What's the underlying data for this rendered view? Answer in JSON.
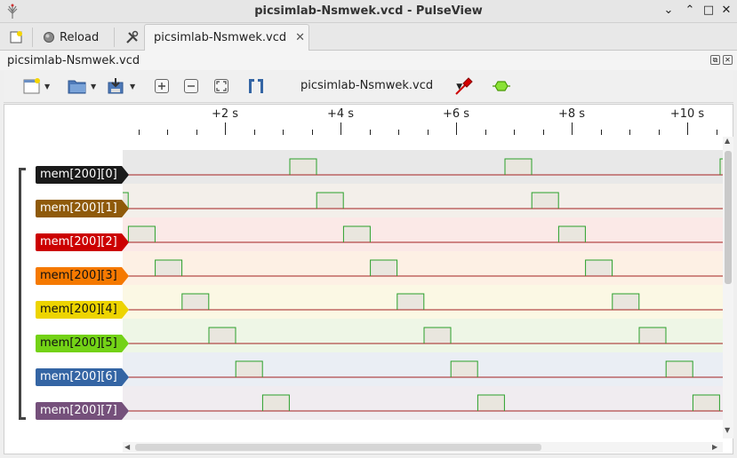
{
  "window": {
    "title": "picsimlab-Nsmwek.vcd - PulseView",
    "controls": [
      "⌄",
      "⌃",
      "□",
      "✕"
    ]
  },
  "tabbar": {
    "reload_label": "Reload",
    "document_tab": "picsimlab-Nsmwek.vcd",
    "close_glyph": "✕"
  },
  "panel": {
    "title": "picsimlab-Nsmwek.vcd",
    "float_glyph": "⧉",
    "close_glyph": "✕"
  },
  "toolbar": {
    "session_select": "picsimlab-Nsmwek.vcd",
    "icons": [
      "new-view-icon",
      "open-icon",
      "save-icon",
      "zoom-in-icon",
      "zoom-out-icon",
      "zoom-fit-icon",
      "cursor-icon",
      "probe-icon",
      "decoder-icon"
    ]
  },
  "ruler": {
    "labels": [
      "+2 s",
      "+4 s",
      "+6 s",
      "+8 s",
      "+10 s"
    ]
  },
  "signals": [
    {
      "name": "mem[200][0]",
      "color": "#1a1a1a",
      "text_color": "#ffffff",
      "lane_bg": "#e8e8e8",
      "high_offset": 0
    },
    {
      "name": "mem[200][1]",
      "color": "#8f5a0a",
      "text_color": "#ffffff",
      "lane_bg": "#f3efea",
      "high_offset": 1
    },
    {
      "name": "mem[200][2]",
      "color": "#cc0000",
      "text_color": "#ffffff",
      "lane_bg": "#fbe9e7",
      "high_offset": 2
    },
    {
      "name": "mem[200][3]",
      "color": "#f57900",
      "text_color": "#111111",
      "lane_bg": "#fdf0e4",
      "high_offset": 3
    },
    {
      "name": "mem[200][4]",
      "color": "#edd400",
      "text_color": "#111111",
      "lane_bg": "#fbf8e4",
      "high_offset": 4
    },
    {
      "name": "mem[200][5]",
      "color": "#73d216",
      "text_color": "#111111",
      "lane_bg": "#eef6e6",
      "high_offset": 5
    },
    {
      "name": "mem[200][6]",
      "color": "#3465a4",
      "text_color": "#ffffff",
      "lane_bg": "#eaeef4",
      "high_offset": 6
    },
    {
      "name": "mem[200][7]",
      "color": "#75507b",
      "text_color": "#ffffff",
      "lane_bg": "#f0ecf0",
      "high_offset": 7
    }
  ],
  "colors": {
    "wave_low": "#a32020",
    "wave_high": "#2aa02a",
    "pulse_fill": "#e9e6de"
  }
}
